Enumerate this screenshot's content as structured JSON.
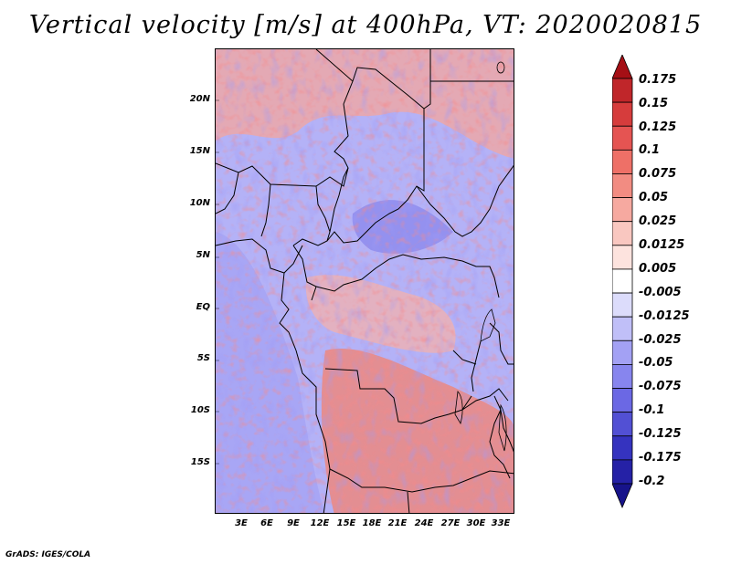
{
  "title": "Vertical velocity [m/s] at 400hPa, VT: 2020020815",
  "credit": "GrADS: IGES/COLA",
  "map": {
    "lat_labels": [
      "20N",
      "15N",
      "10N",
      "5N",
      "EQ",
      "5S",
      "10S",
      "15S"
    ],
    "lon_labels": [
      "3E",
      "6E",
      "9E",
      "12E",
      "15E",
      "18E",
      "21E",
      "24E",
      "27E",
      "30E",
      "33E"
    ]
  },
  "colorbar": {
    "labels": [
      "0.175",
      "0.15",
      "0.125",
      "0.1",
      "0.075",
      "0.05",
      "0.025",
      "0.0125",
      "0.005",
      "-0.005",
      "-0.0125",
      "-0.025",
      "-0.05",
      "-0.075",
      "-0.1",
      "-0.125",
      "-0.175",
      "-0.2"
    ],
    "colors": [
      "#a50f15",
      "#c0262a",
      "#d63c3c",
      "#e55452",
      "#ee7067",
      "#f28c82",
      "#f6a9a0",
      "#f9c7c0",
      "#fde3de",
      "#ffffff",
      "#dcdcfb",
      "#c0bff8",
      "#a3a1f4",
      "#8785ee",
      "#6b68e4",
      "#5250d4",
      "#3533bf",
      "#2521a6",
      "#17138a"
    ]
  }
}
